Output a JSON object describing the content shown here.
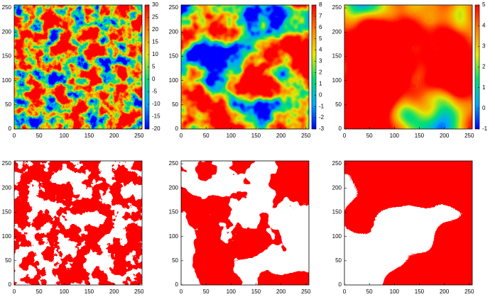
{
  "chart_data": [
    {
      "type": "heatmap",
      "colormap": "jet",
      "xlim": [
        0,
        256
      ],
      "ylim": [
        0,
        256
      ],
      "xticks": [
        0,
        50,
        100,
        150,
        200,
        250
      ],
      "yticks": [
        0,
        50,
        100,
        150,
        200,
        250
      ],
      "clim": [
        -20,
        30
      ],
      "cticks": [
        -20,
        -15,
        -10,
        -5,
        0,
        5,
        10,
        15,
        20,
        25,
        30
      ]
    },
    {
      "type": "heatmap",
      "colormap": "jet",
      "xlim": [
        0,
        256
      ],
      "ylim": [
        0,
        256
      ],
      "xticks": [
        0,
        50,
        100,
        150,
        200,
        250
      ],
      "yticks": [
        0,
        50,
        100,
        150,
        200,
        250
      ],
      "clim": [
        -3,
        8
      ],
      "cticks": [
        -3,
        -2,
        -1,
        0,
        1,
        2,
        3,
        4,
        5,
        6,
        7,
        8
      ]
    },
    {
      "type": "heatmap",
      "colormap": "jet",
      "xlim": [
        0,
        256
      ],
      "ylim": [
        0,
        256
      ],
      "xticks": [
        0,
        50,
        100,
        150,
        200,
        250
      ],
      "yticks": [
        0,
        50,
        100,
        150,
        200,
        250
      ],
      "clim": [
        -1,
        5
      ],
      "cticks": [
        -1,
        0,
        1,
        2,
        3,
        4,
        5
      ]
    },
    {
      "type": "binary",
      "color": "#ff0000",
      "xlim": [
        0,
        256
      ],
      "ylim": [
        0,
        256
      ],
      "xticks": [
        0,
        50,
        100,
        150,
        200,
        250
      ],
      "yticks": [
        0,
        50,
        100,
        150,
        200,
        250
      ]
    },
    {
      "type": "binary",
      "color": "#ff0000",
      "xlim": [
        0,
        256
      ],
      "ylim": [
        0,
        256
      ],
      "xticks": [
        0,
        50,
        100,
        150,
        200,
        250
      ],
      "yticks": [
        0,
        50,
        100,
        150,
        200,
        250
      ]
    },
    {
      "type": "binary",
      "color": "#ff0000",
      "xlim": [
        0,
        256
      ],
      "ylim": [
        0,
        256
      ],
      "xticks": [
        0,
        50,
        100,
        150,
        200,
        250
      ],
      "yticks": [
        0,
        50,
        100,
        150,
        200,
        250
      ]
    }
  ]
}
